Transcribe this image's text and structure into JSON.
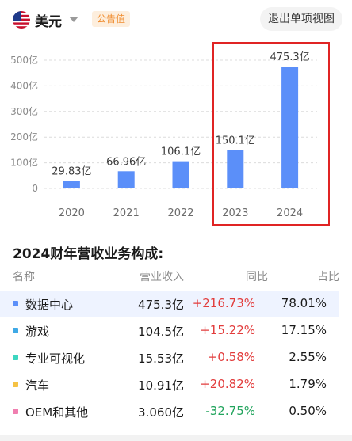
{
  "header": {
    "currency": "美元",
    "badge": "公告值",
    "exit_button": "退出单项视图"
  },
  "chart_data": {
    "type": "bar",
    "categories": [
      "2020",
      "2021",
      "2022",
      "2023",
      "2024"
    ],
    "values": [
      29.83,
      66.96,
      106.1,
      150.1,
      475.3
    ],
    "value_labels": [
      "29.83亿",
      "66.96亿",
      "106.1亿",
      "150.1亿",
      "475.3亿"
    ],
    "y_ticks": [
      "0",
      "100亿",
      "200亿",
      "300亿",
      "400亿",
      "500亿"
    ],
    "y_tick_values": [
      0,
      100,
      200,
      300,
      400,
      500
    ],
    "ylim": [
      0,
      500
    ],
    "bar_color": "#5b8ff9",
    "grid": true
  },
  "breakdown": {
    "title": "2024财年营收业务构成:",
    "columns": {
      "name": "名称",
      "revenue": "营业收入",
      "yoy": "同比",
      "share": "占比"
    },
    "rows": [
      {
        "name": "数据中心",
        "revenue": "475.3亿",
        "yoy": "+216.73%",
        "share": "78.01%",
        "color": "#5b8ff9",
        "yoy_color": "#e23c3c"
      },
      {
        "name": "游戏",
        "revenue": "104.5亿",
        "yoy": "+15.22%",
        "share": "17.15%",
        "color": "#3fa9e6",
        "yoy_color": "#e23c3c"
      },
      {
        "name": "专业可视化",
        "revenue": "15.53亿",
        "yoy": "+0.58%",
        "share": "2.55%",
        "color": "#3dd6c0",
        "yoy_color": "#e23c3c"
      },
      {
        "name": "汽车",
        "revenue": "10.91亿",
        "yoy": "+20.82%",
        "share": "1.79%",
        "color": "#f5c244",
        "yoy_color": "#e23c3c"
      },
      {
        "name": "OEM和其他",
        "revenue": "3.060亿",
        "yoy": "-32.75%",
        "share": "0.50%",
        "color": "#f07fb0",
        "yoy_color": "#22a45d"
      }
    ]
  }
}
